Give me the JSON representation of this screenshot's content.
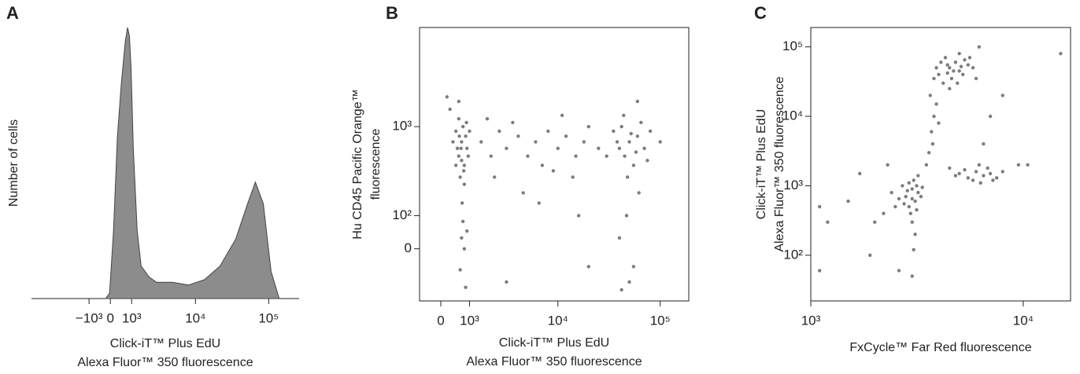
{
  "chart_data": [
    {
      "panel": "A",
      "type": "area",
      "xscale": "biexponential",
      "yscale": "linear",
      "color": "#8c8c8c",
      "ylabel": [
        "Number of cells"
      ],
      "xlabel": [
        "Click-iT™ Plus EdU",
        "Alexa Fluor™ 350 fluorescence"
      ],
      "xlim": [
        -8200,
        260000
      ],
      "ylim": [
        0,
        100
      ],
      "xticks": [
        {
          "value": -1000,
          "label": "−10³"
        },
        0,
        {
          "value": 1000,
          "label": "10³"
        },
        {
          "value": 10000,
          "label": "10⁴"
        },
        {
          "value": 100000,
          "label": "10⁵"
        }
      ],
      "x": [
        -207,
        -34,
        138,
        312,
        493,
        679,
        791,
        883,
        969,
        1092,
        1317,
        1560,
        2130,
        2790,
        4800,
        7980,
        13300,
        21700,
        35600,
        51600,
        65800,
        84500,
        108000,
        139000
      ],
      "values": [
        0,
        2,
        25,
        60,
        80,
        95,
        100,
        97,
        85,
        55,
        25,
        12,
        8,
        6,
        6,
        5,
        7,
        12,
        22,
        35,
        43,
        35,
        10,
        0
      ]
    },
    {
      "panel": "B",
      "type": "scatter",
      "xscale": "biexponential",
      "yscale": "biexponential",
      "color": "#666666",
      "ylabel": [
        "Hu CD45 Pacific Orange™",
        "fluorescence"
      ],
      "xlabel": [
        "Click-iT™ Plus EdU",
        "Alexa Fluor™ 350 fluorescence"
      ],
      "xlim": [
        -720,
        190000
      ],
      "ylim": [
        -180,
        10000
      ],
      "xticks": [
        0,
        {
          "value": 1000,
          "label": "10³"
        },
        {
          "value": 10000,
          "label": "10⁴"
        },
        {
          "value": 100000,
          "label": "10⁵"
        }
      ],
      "yticks": [
        0,
        {
          "value": 100,
          "label": "10²"
        },
        {
          "value": 1000,
          "label": "10³"
        }
      ],
      "x": [
        600,
        700,
        800,
        500,
        900,
        650,
        750,
        550,
        850,
        700,
        600,
        800,
        950,
        400,
        1000,
        720,
        680,
        780,
        620,
        880,
        500,
        300,
        200,
        750,
        700,
        800,
        650,
        850,
        900,
        600,
        1500,
        2000,
        2500,
        3000,
        4000,
        5000,
        6000,
        7000,
        8000,
        10000,
        12000,
        15000,
        18000,
        20000,
        2200,
        3500,
        9000,
        14000,
        25000,
        1800,
        4500,
        11000,
        6500,
        16000,
        3000,
        20000,
        40000,
        50000,
        45000,
        60000,
        35000,
        55000,
        70000,
        42000,
        48000,
        65000,
        38000,
        52000,
        58000,
        75000,
        44000,
        80000,
        30000,
        62000,
        47000,
        40000,
        55000,
        42000,
        50000,
        60000,
        100000
      ],
      "values": [
        500,
        700,
        400,
        900,
        600,
        300,
        1000,
        600,
        800,
        450,
        1200,
        250,
        500,
        700,
        900,
        150,
        600,
        350,
        800,
        1100,
        400,
        1500,
        2000,
        80,
        30,
        0,
        -60,
        -120,
        50,
        1800,
        700,
        500,
        900,
        600,
        800,
        500,
        700,
        400,
        900,
        600,
        800,
        500,
        700,
        1000,
        300,
        1100,
        350,
        300,
        600,
        1200,
        200,
        1300,
        150,
        100,
        -100,
        -50,
        600,
        700,
        500,
        800,
        900,
        400,
        600,
        1000,
        300,
        1100,
        700,
        850,
        550,
        450,
        1300,
        900,
        500,
        200,
        100,
        30,
        -50,
        -130,
        -100,
        1800,
        700
      ]
    },
    {
      "panel": "C",
      "type": "scatter",
      "xscale": "log",
      "yscale": "log",
      "color": "#666666",
      "ylabel": [
        "Click-iT™ Plus EdU",
        "Alexa Fluor™ 350 fluorescence"
      ],
      "xlabel": [
        "FxCycle™ Far Red fluorescence"
      ],
      "xlim": [
        1000,
        16700
      ],
      "ylim": [
        22,
        190000
      ],
      "xticks": [
        {
          "value": 1000,
          "label": "10³"
        },
        {
          "value": 10000,
          "label": "10⁴"
        }
      ],
      "yticks": [
        {
          "value": 100,
          "label": "10²"
        },
        {
          "value": 1000,
          "label": "10³"
        },
        {
          "value": 10000,
          "label": "10⁴"
        },
        {
          "value": 100000,
          "label": "10⁵"
        }
      ],
      "x": [
        2800,
        3000,
        3100,
        2900,
        3200,
        2700,
        3050,
        2950,
        3300,
        2600,
        3150,
        2850,
        3000,
        3100,
        3050,
        3200,
        2500,
        2400,
        2750,
        3350,
        3000,
        2900,
        3150,
        2200,
        2000,
        3600,
        3700,
        3800,
        3900,
        3500,
        4000,
        3750,
        3650,
        4000,
        4500,
        5000,
        4200,
        4800,
        5500,
        4300,
        4600,
        5200,
        3900,
        4700,
        5800,
        4400,
        5000,
        6000,
        4100,
        4900,
        5300,
        4500,
        3800,
        5600,
        6200,
        4400,
        5100,
        5000,
        5500,
        6000,
        6500,
        7000,
        5800,
        6200,
        4500,
        7500,
        6800,
        5300,
        6300,
        4800,
        8000,
        7200,
        1100,
        1200,
        1500,
        1700,
        2300,
        1900,
        1100,
        9500,
        10500,
        15000,
        8000,
        3000,
        2600,
        7000,
        6500
      ],
      "values": [
        700,
        900,
        600,
        500,
        800,
        1000,
        1200,
        400,
        700,
        650,
        1000,
        850,
        300,
        200,
        120,
        1400,
        500,
        800,
        550,
        950,
        650,
        1100,
        450,
        400,
        300,
        3000,
        6000,
        10000,
        15000,
        2000,
        8000,
        4000,
        20000,
        40000,
        50000,
        45000,
        30000,
        60000,
        55000,
        70000,
        35000,
        40000,
        50000,
        45000,
        50000,
        55000,
        80000,
        35000,
        60000,
        30000,
        65000,
        25000,
        35000,
        70000,
        100000,
        42000,
        52000,
        1500,
        1300,
        1600,
        1400,
        1500,
        1200,
        2000,
        1800,
        1300,
        1800,
        1700,
        1100,
        1400,
        1600,
        1200,
        500,
        300,
        600,
        1500,
        2000,
        100,
        60,
        2000,
        2000,
        80000,
        20000,
        50,
        60,
        10000,
        4000
      ]
    }
  ]
}
